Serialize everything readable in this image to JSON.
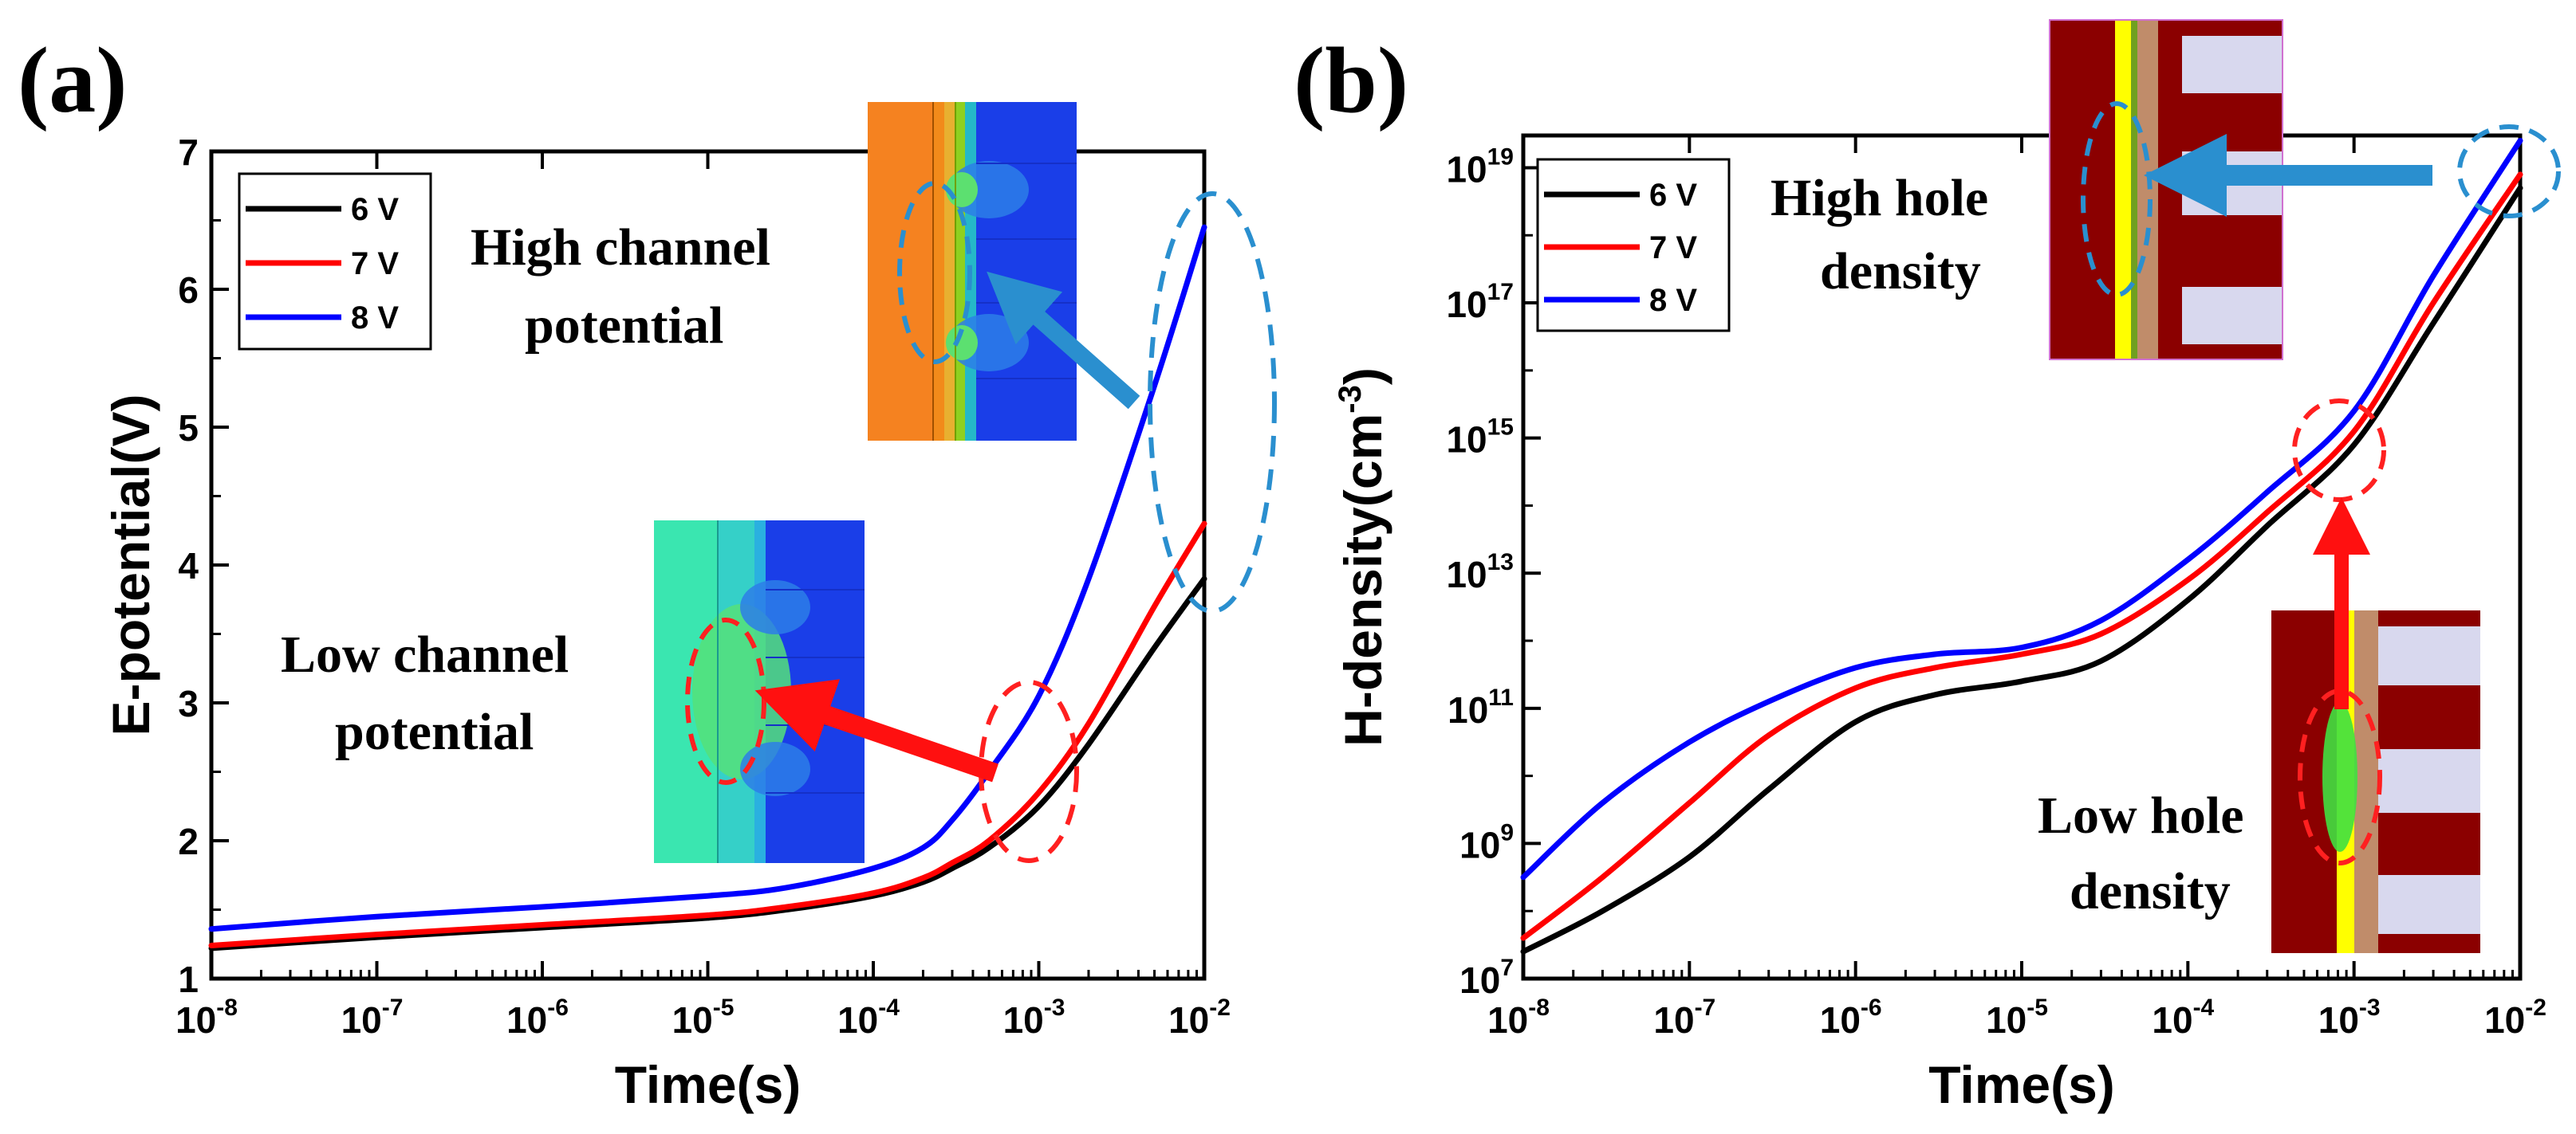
{
  "panels": {
    "a": {
      "label": "(a)",
      "annotation_high": [
        "High channel",
        "potential"
      ],
      "annotation_low": [
        "Low channel",
        "potential"
      ]
    },
    "b": {
      "label": "(b)",
      "annotation_high": [
        "High hole",
        "density"
      ],
      "annotation_low": [
        "Low hole",
        "density"
      ]
    }
  },
  "colors": {
    "6 V": "#000000",
    "7 V": "#ff0000",
    "8 V": "#0000ff",
    "highlight_blue": "#2a8fcf",
    "highlight_red": "#ff2020"
  },
  "chart_data": [
    {
      "type": "line",
      "title": "",
      "xlabel": "Time(s)",
      "ylabel": "E-potential(V)",
      "xscale": "log",
      "xlim": [
        1e-08,
        0.01
      ],
      "ylim": [
        1,
        7
      ],
      "xticks": [
        {
          "base": "10",
          "exp": "-8"
        },
        {
          "base": "10",
          "exp": "-7"
        },
        {
          "base": "10",
          "exp": "-6"
        },
        {
          "base": "10",
          "exp": "-5"
        },
        {
          "base": "10",
          "exp": "-4"
        },
        {
          "base": "10",
          "exp": "-3"
        },
        {
          "base": "10",
          "exp": "-2"
        }
      ],
      "yticks": [
        "1",
        "2",
        "3",
        "4",
        "5",
        "6",
        "7"
      ],
      "legend": {
        "position": "top-left",
        "entries": [
          "6 V",
          "7 V",
          "8 V"
        ]
      },
      "x": [
        1e-08,
        1e-07,
        1e-06,
        1e-05,
        3e-05,
        0.0001,
        0.0002,
        0.0003,
        0.0005,
        0.001,
        0.002,
        0.005,
        0.01
      ],
      "series": [
        {
          "name": "6 V",
          "values": [
            1.22,
            1.3,
            1.37,
            1.44,
            1.5,
            1.6,
            1.7,
            1.8,
            1.95,
            2.25,
            2.7,
            3.4,
            3.9
          ]
        },
        {
          "name": "7 V",
          "values": [
            1.24,
            1.32,
            1.39,
            1.46,
            1.52,
            1.62,
            1.73,
            1.84,
            2.0,
            2.35,
            2.85,
            3.7,
            4.3
          ]
        },
        {
          "name": "8 V",
          "values": [
            1.36,
            1.45,
            1.52,
            1.6,
            1.66,
            1.8,
            1.95,
            2.15,
            2.5,
            3.05,
            3.9,
            5.3,
            6.45
          ]
        }
      ]
    },
    {
      "type": "line",
      "title": "",
      "xlabel": "Time(s)",
      "ylabel_parts": {
        "main": "H-density(cm",
        "exp": "-3",
        "close": ")"
      },
      "xscale": "log",
      "yscale": "log",
      "xlim": [
        1e-08,
        0.01
      ],
      "ylim": [
        10000000.0,
        3e+19
      ],
      "xticks": [
        {
          "base": "10",
          "exp": "-8"
        },
        {
          "base": "10",
          "exp": "-7"
        },
        {
          "base": "10",
          "exp": "-6"
        },
        {
          "base": "10",
          "exp": "-5"
        },
        {
          "base": "10",
          "exp": "-4"
        },
        {
          "base": "10",
          "exp": "-3"
        },
        {
          "base": "10",
          "exp": "-2"
        }
      ],
      "yticks": [
        {
          "base": "10",
          "exp": "7"
        },
        {
          "base": "10",
          "exp": "9"
        },
        {
          "base": "10",
          "exp": "11"
        },
        {
          "base": "10",
          "exp": "13"
        },
        {
          "base": "10",
          "exp": "15"
        },
        {
          "base": "10",
          "exp": "17"
        },
        {
          "base": "10",
          "exp": "19"
        }
      ],
      "legend": {
        "position": "top-left",
        "entries": [
          "6 V",
          "7 V",
          "8 V"
        ]
      },
      "x": [
        1e-08,
        3e-08,
        1e-07,
        3e-07,
        1e-06,
        3e-06,
        1e-05,
        3e-05,
        0.0001,
        0.0003,
        0.001,
        0.003,
        0.01
      ],
      "series_log10": [
        {
          "name": "6 V",
          "values": [
            7.4,
            8.0,
            8.8,
            9.8,
            10.8,
            11.2,
            11.4,
            11.7,
            12.6,
            13.7,
            14.9,
            16.7,
            18.7
          ]
        },
        {
          "name": "7 V",
          "values": [
            7.6,
            8.5,
            9.6,
            10.6,
            11.3,
            11.6,
            11.8,
            12.1,
            12.9,
            13.9,
            15.1,
            17.0,
            18.9
          ]
        },
        {
          "name": "8 V",
          "values": [
            8.5,
            9.6,
            10.5,
            11.1,
            11.6,
            11.8,
            11.9,
            12.3,
            13.2,
            14.2,
            15.4,
            17.4,
            19.4
          ]
        }
      ]
    }
  ]
}
